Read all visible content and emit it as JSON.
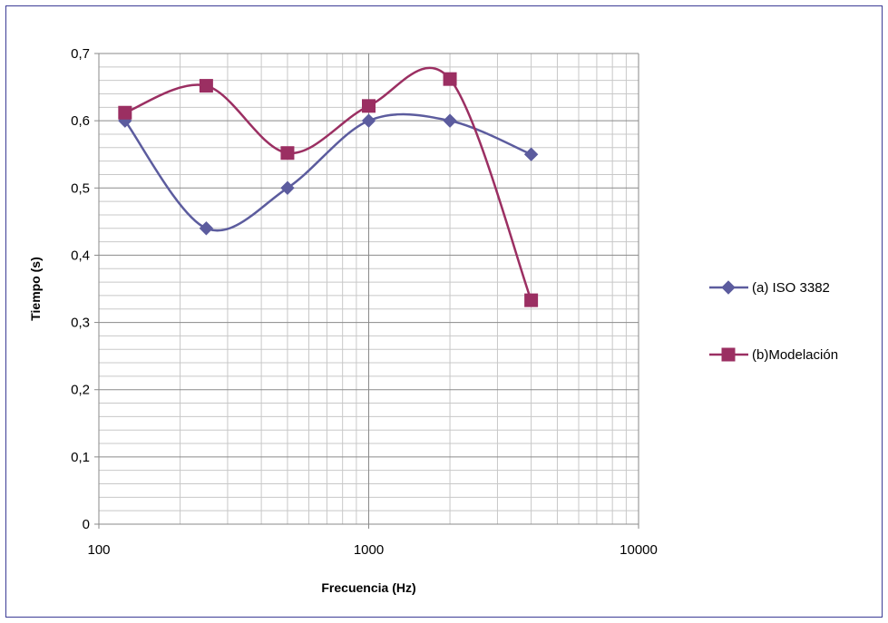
{
  "chart_data": {
    "type": "line",
    "title": "",
    "xlabel": "Frecuencia (Hz)",
    "ylabel": "Tiempo (s)",
    "x_scale": "log",
    "xlim": [
      100,
      10000
    ],
    "ylim": [
      0,
      0.7
    ],
    "x_tick_labels": [
      "100",
      "1000",
      "10000"
    ],
    "y_tick_labels": [
      "0",
      "0,1",
      "0,2",
      "0,3",
      "0,4",
      "0,5",
      "0,6",
      "0,7"
    ],
    "grid": true,
    "smooth": true,
    "legend_position": "right",
    "x": [
      125,
      250,
      500,
      1000,
      2000,
      4000
    ],
    "series": [
      {
        "name": "(a) ISO 3382",
        "values": [
          0.6,
          0.44,
          0.5,
          0.6,
          0.6,
          0.55
        ],
        "color": "#5c5c9e",
        "marker": "diamond"
      },
      {
        "name": "(b)Modelación",
        "values": [
          0.612,
          0.652,
          0.552,
          0.622,
          0.662,
          0.333
        ],
        "color": "#9b2f62",
        "marker": "square"
      }
    ]
  }
}
